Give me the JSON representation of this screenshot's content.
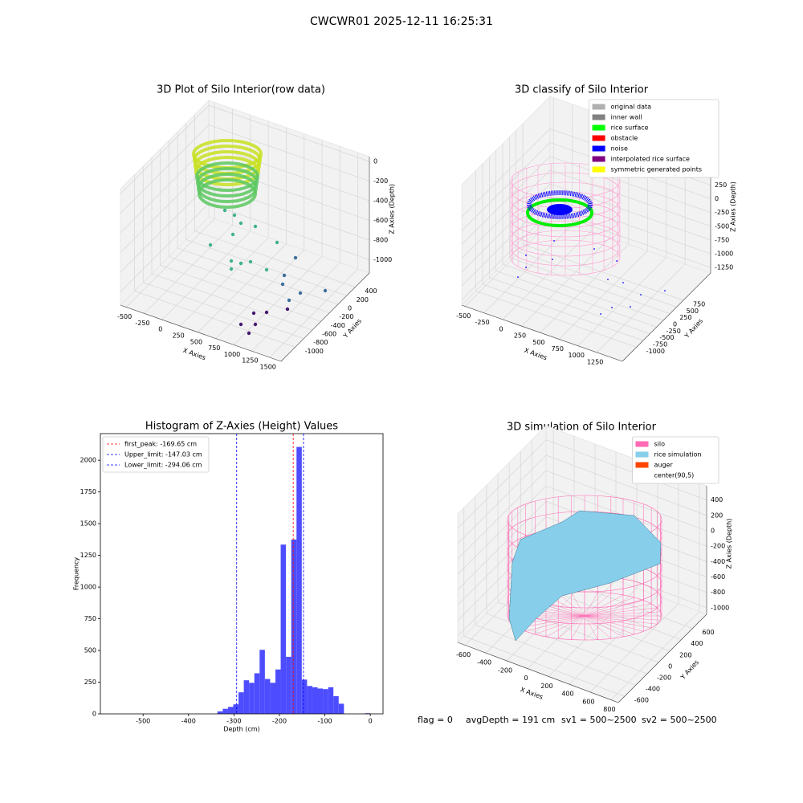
{
  "title": "CWCWR01 2025-12-11 16:25:31",
  "footer": [
    "flag = 0",
    "avgDepth = 191 cm",
    "sv1 = 500~2500",
    "sv2 = 500~2500"
  ],
  "chart_data": [
    {
      "type": "scatter3d",
      "title": "3D Plot of Silo Interior(row data)",
      "xlabel": "X Axies",
      "ylabel": "Y Axies",
      "zlabel": "Z Axies (Depth)",
      "xlim": [
        -580,
        1660
      ],
      "ylim": [
        -1330,
        730
      ],
      "zlim": [
        -1135,
        50
      ],
      "xticks": [
        -500,
        -250,
        0,
        250,
        500,
        750,
        1000,
        1250,
        1500
      ],
      "yticks": [
        -1000,
        -800,
        -600,
        -400,
        -200,
        0,
        200,
        400
      ],
      "zticks": [
        -1000,
        -800,
        -600,
        -400,
        -200,
        0
      ],
      "grid": true
    },
    {
      "type": "scatter3d",
      "title": "3D classify of Silo Interior",
      "xlabel": "X Axies",
      "ylabel": "Y Axies",
      "zlabel": "Z Axies (Depth)",
      "xlim": [
        -545,
        1590
      ],
      "ylim": [
        -1530,
        1770
      ],
      "zlim": [
        -1350,
        840
      ],
      "xticks": [
        -500,
        -250,
        0,
        250,
        500,
        750,
        1000,
        1250
      ],
      "yticks": [
        -1000,
        -750,
        -500,
        -250,
        0,
        250,
        500,
        750
      ],
      "zticks": [
        -1250,
        -1000,
        -750,
        -500,
        -250,
        0,
        250
      ],
      "grid": true,
      "legend": "upper right",
      "series": [
        {
          "name": "original data",
          "color": "#b0b0b0"
        },
        {
          "name": "inner wall",
          "color": "#808080"
        },
        {
          "name": "rice surface",
          "color": "#00ff00"
        },
        {
          "name": "obstacle",
          "color": "#ff0000"
        },
        {
          "name": "noise",
          "color": "#0000ff"
        },
        {
          "name": "interpolated rice surface",
          "color": "#800080"
        },
        {
          "name": "symmetric generated points",
          "color": "#ffff00"
        }
      ]
    },
    {
      "type": "histogram",
      "title": "Histogram of Z-Axies (Height) Values",
      "xlabel": "Depth (cm)",
      "ylabel": "Frequency",
      "color": "#4d4dff",
      "bins": [
        -580,
        -568.4,
        -556.8,
        -545.2,
        -533.6,
        -522,
        -510.4,
        -498.8,
        -487.2,
        -475.6,
        -464,
        -452.4,
        -440.8,
        -429.2,
        -417.6,
        -406,
        -394.4,
        -382.8,
        -371.2,
        -359.6,
        -348,
        -336.4,
        -324.8,
        -313.2,
        -301.6,
        -290,
        -278.4,
        -266.8,
        -255.2,
        -243.6,
        -232,
        -220.4,
        -208.8,
        -197.2,
        -185.6,
        -174,
        -162.4,
        -150.8,
        -139.2,
        -127.6,
        -116,
        -104.4,
        -92.8,
        -81.2,
        -69.6,
        -58,
        -46.4,
        -34.8,
        -23.2,
        -11.6,
        0
      ],
      "values": [
        0,
        0,
        0,
        0,
        0,
        0,
        0,
        0,
        0,
        0,
        0,
        0,
        0,
        0,
        0,
        0,
        0,
        0,
        0,
        0,
        0,
        20,
        40,
        55,
        75,
        170,
        265,
        245,
        320,
        505,
        275,
        245,
        350,
        1335,
        450,
        1375,
        2105,
        270,
        220,
        210,
        200,
        195,
        210,
        140,
        80,
        0,
        0,
        0,
        0,
        5
      ],
      "xlim": [
        -594,
        28
      ],
      "ylim": [
        0,
        2210
      ],
      "xticks": [
        -500,
        -400,
        -300,
        -200,
        -100,
        0
      ],
      "yticks": [
        0,
        250,
        500,
        750,
        1000,
        1250,
        1500,
        1750,
        2000
      ],
      "legend": "upper left",
      "lines": [
        {
          "name": "first_peak: -169.65 cm",
          "value": -169.65,
          "color": "#ff0000"
        },
        {
          "name": "Upper_limit: -147.03 cm",
          "value": -147.03,
          "color": "#0000ff"
        },
        {
          "name": "Lower_limit: -294.06 cm",
          "value": -294.06,
          "color": "#0000ff"
        }
      ]
    },
    {
      "type": "surface3d",
      "title": "3D simulation of Silo Interior",
      "xlabel": "X Axies",
      "ylabel": "Y Axies",
      "zlabel": "Z Axies (Depth)",
      "xlim": [
        -670,
        870
      ],
      "ylim": [
        -710,
        850
      ],
      "zlim": [
        -1085,
        585
      ],
      "xticks": [
        -600,
        -400,
        -200,
        0,
        200,
        400,
        600,
        800
      ],
      "yticks": [
        -600,
        -400,
        -200,
        0,
        200,
        400,
        600
      ],
      "zticks": [
        -1000,
        -800,
        -600,
        -400,
        -200,
        0,
        200,
        400
      ],
      "grid": true,
      "legend": "upper right",
      "series": [
        {
          "name": "silo",
          "color": "#ff69b4"
        },
        {
          "name": "rice simulation",
          "color": "#87ceeb"
        },
        {
          "name": "auger",
          "color": "#ff4500"
        },
        {
          "name": "center(90,5)",
          "color": "#ffffff"
        }
      ]
    }
  ]
}
